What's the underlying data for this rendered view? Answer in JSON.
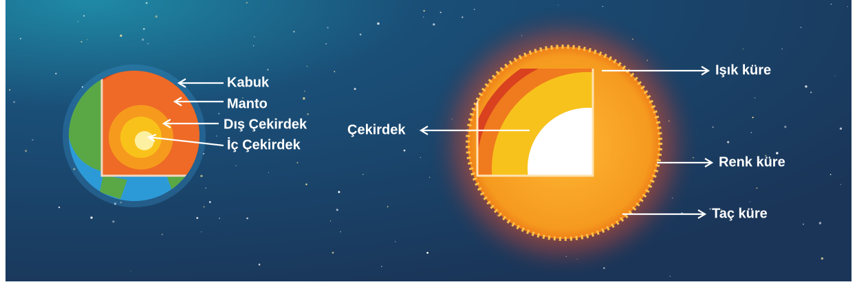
{
  "earth": {
    "labels": [
      "Kabuk",
      "Manto",
      "Dış Çekirdek",
      "İç Çekirdek"
    ]
  },
  "sun": {
    "core_label": "Çekirdek",
    "labels": [
      "Işık küre",
      "Renk küre",
      "Taç küre"
    ]
  }
}
